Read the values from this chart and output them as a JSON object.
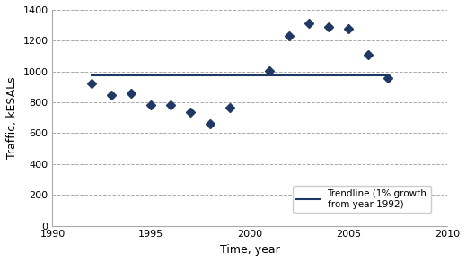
{
  "traffic_years": [
    1992,
    1993,
    1994,
    1995,
    1996,
    1997,
    1998,
    1999,
    2001,
    2002,
    2003,
    2004,
    2005,
    2006,
    2007
  ],
  "traffic": [
    925,
    850,
    860,
    785,
    785,
    735,
    660,
    765,
    1005,
    1230,
    1315,
    1290,
    1275,
    1110,
    960
  ],
  "trendline_x": [
    1992,
    2007
  ],
  "trendline_y": [
    975,
    975
  ],
  "marker_color": "#1F3864",
  "trendline_color": "#1F3864",
  "xlabel": "Time, year",
  "ylabel": "Traffic, kESALs",
  "xlim": [
    1990,
    2010
  ],
  "ylim": [
    0,
    1400
  ],
  "yticks": [
    0,
    200,
    400,
    600,
    800,
    1000,
    1200,
    1400
  ],
  "xticks": [
    1990,
    1995,
    2000,
    2005,
    2010
  ],
  "legend_label": "Trendline (1% growth\nfrom year 1992)",
  "bg_color": "#ffffff",
  "grid_color": "#aaaaaa"
}
